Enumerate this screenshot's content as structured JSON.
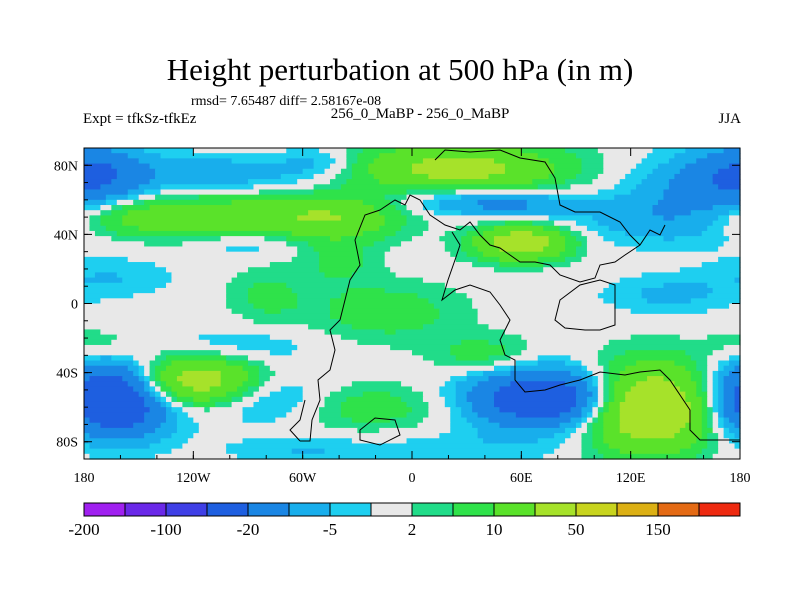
{
  "chart_data": {
    "type": "heatmap",
    "title": "Height perturbation at 500 hPa (in m)",
    "subtitle": "rmsd= 7.65487 diff= 2.58167e-08",
    "left_label": "Expt = tfkSz-tfkEz",
    "center_label": "256_0_MaBP - 256_0_MaBP",
    "right_label": "JJA",
    "x_range": [
      -180,
      180
    ],
    "y_range": [
      -90,
      90
    ],
    "x_ticks": [
      {
        "v": -180,
        "label": "180"
      },
      {
        "v": -120,
        "label": "120W"
      },
      {
        "v": -60,
        "label": "60W"
      },
      {
        "v": 0,
        "label": "0"
      },
      {
        "v": 60,
        "label": "60E"
      },
      {
        "v": 120,
        "label": "120E"
      },
      {
        "v": 180,
        "label": "180"
      }
    ],
    "y_ticks": [
      {
        "v": 80,
        "label": "80N"
      },
      {
        "v": 40,
        "label": "40N"
      },
      {
        "v": 0,
        "label": "0"
      },
      {
        "v": -40,
        "label": "40S"
      },
      {
        "v": -80,
        "label": "80S"
      }
    ],
    "levels": [
      -200,
      -150,
      -100,
      -50,
      -20,
      -10,
      -5,
      -2,
      2,
      5,
      10,
      20,
      50,
      100,
      150,
      200
    ],
    "colorbar_colors": [
      "#a020f0",
      "#6a28e8",
      "#3f3fe6",
      "#1e5fe0",
      "#1a86e4",
      "#18aeec",
      "#1ecff0",
      "#e8e8e8",
      "#21dc89",
      "#2fe24a",
      "#5ae22a",
      "#a6e22a",
      "#c8d41e",
      "#dcb014",
      "#e46a14",
      "#ee2a10"
    ],
    "colorbar_labels": [
      {
        "v": -200,
        "label": "-200"
      },
      {
        "v": -100,
        "label": "-100"
      },
      {
        "v": -20,
        "label": "-20"
      },
      {
        "v": -5,
        "label": "-5"
      },
      {
        "v": 2,
        "label": "2"
      },
      {
        "v": 10,
        "label": "10"
      },
      {
        "v": 50,
        "label": "50"
      },
      {
        "v": 150,
        "label": "150"
      }
    ],
    "field_centers": [
      {
        "lon": -170,
        "lat": 75,
        "amp": -9,
        "rx": 20,
        "ry": 12
      },
      {
        "lon": 180,
        "lat": 75,
        "amp": -9,
        "rx": 20,
        "ry": 12
      },
      {
        "lon": -160,
        "lat": 50,
        "amp": 12,
        "rx": 30,
        "ry": 8
      },
      {
        "lon": -95,
        "lat": 50,
        "amp": 15,
        "rx": 40,
        "ry": 9
      },
      {
        "lon": -40,
        "lat": 50,
        "amp": 14,
        "rx": 25,
        "ry": 9
      },
      {
        "lon": -100,
        "lat": 75,
        "amp": -8,
        "rx": 40,
        "ry": 8
      },
      {
        "lon": -50,
        "lat": 82,
        "amp": -6,
        "rx": 15,
        "ry": 6
      },
      {
        "lon": 25,
        "lat": 78,
        "amp": 25,
        "rx": 40,
        "ry": 10
      },
      {
        "lon": 30,
        "lat": 60,
        "amp": -10,
        "rx": 30,
        "ry": 6
      },
      {
        "lon": 60,
        "lat": 35,
        "amp": 30,
        "rx": 18,
        "ry": 7
      },
      {
        "lon": 60,
        "lat": 57,
        "amp": -7,
        "rx": 25,
        "ry": 5
      },
      {
        "lon": 140,
        "lat": 48,
        "amp": -7,
        "rx": 40,
        "ry": 10
      },
      {
        "lon": 160,
        "lat": 65,
        "amp": -10,
        "rx": 30,
        "ry": 15
      },
      {
        "lon": -165,
        "lat": 15,
        "amp": -5,
        "rx": 25,
        "ry": 8
      },
      {
        "lon": -90,
        "lat": 35,
        "amp": -6,
        "rx": 20,
        "ry": 6
      },
      {
        "lon": -80,
        "lat": 5,
        "amp": 6,
        "rx": 15,
        "ry": 12
      },
      {
        "lon": -40,
        "lat": 25,
        "amp": 6,
        "rx": 15,
        "ry": 10
      },
      {
        "lon": -15,
        "lat": -5,
        "amp": 8,
        "rx": 30,
        "ry": 12
      },
      {
        "lon": -95,
        "lat": -25,
        "amp": -5,
        "rx": 30,
        "ry": 8
      },
      {
        "lon": 140,
        "lat": 5,
        "amp": -6,
        "rx": 25,
        "ry": 8
      },
      {
        "lon": -170,
        "lat": -25,
        "amp": 6,
        "rx": 20,
        "ry": 8
      },
      {
        "lon": -165,
        "lat": -55,
        "amp": -40,
        "rx": 22,
        "ry": 15
      },
      {
        "lon": -120,
        "lat": -45,
        "amp": 30,
        "rx": 25,
        "ry": 10
      },
      {
        "lon": -80,
        "lat": -55,
        "amp": -10,
        "rx": 25,
        "ry": 10
      },
      {
        "lon": -25,
        "lat": -60,
        "amp": 8,
        "rx": 35,
        "ry": 10
      },
      {
        "lon": 40,
        "lat": -30,
        "amp": 8,
        "rx": 20,
        "ry": 8
      },
      {
        "lon": 75,
        "lat": -55,
        "amp": -35,
        "rx": 30,
        "ry": 12
      },
      {
        "lon": 130,
        "lat": -60,
        "amp": 40,
        "rx": 25,
        "ry": 17
      },
      {
        "lon": 30,
        "lat": -85,
        "amp": -4,
        "rx": 40,
        "ry": 8
      },
      {
        "lon": -60,
        "lat": -85,
        "amp": -5,
        "rx": 30,
        "ry": 6
      }
    ]
  }
}
